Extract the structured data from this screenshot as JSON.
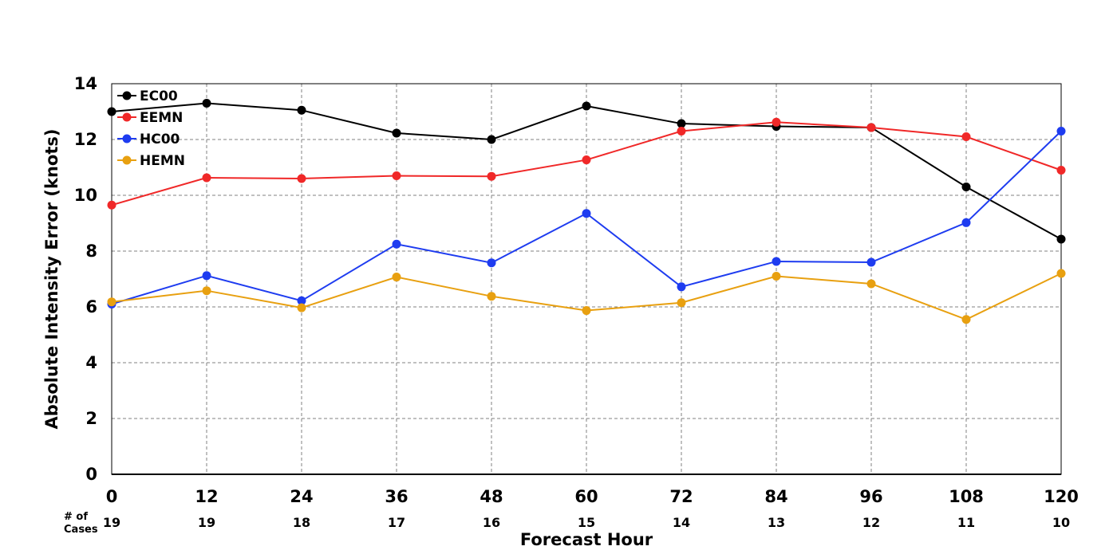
{
  "chart_data": {
    "type": "line",
    "x": [
      0,
      12,
      24,
      36,
      48,
      60,
      72,
      84,
      96,
      108,
      120
    ],
    "xtick_labels": [
      "0",
      "12",
      "24",
      "36",
      "48",
      "60",
      "72",
      "84",
      "96",
      "108",
      "120"
    ],
    "xlabel": "Forecast Hour",
    "ylabel": "Absolute Intensity Error (knots)",
    "xlim": [
      0,
      120
    ],
    "ylim": [
      0,
      14
    ],
    "yticks": [
      0,
      2,
      4,
      6,
      8,
      10,
      12,
      14
    ],
    "ytick_labels": [
      "0",
      "2",
      "4",
      "6",
      "8",
      "10",
      "12",
      "14"
    ],
    "grid": true,
    "legend_position": "top-left",
    "cases_title": [
      "# of",
      "Cases"
    ],
    "cases": [
      "19",
      "19",
      "18",
      "17",
      "16",
      "15",
      "14",
      "13",
      "12",
      "11",
      "10"
    ],
    "series": [
      {
        "name": "EC00",
        "color": "#000000",
        "values": [
          13.0,
          13.3,
          13.05,
          12.23,
          12.0,
          13.2,
          12.57,
          12.47,
          12.43,
          10.3,
          8.43
        ]
      },
      {
        "name": "EEMN",
        "color": "#f02828",
        "values": [
          9.65,
          10.63,
          10.6,
          10.7,
          10.68,
          11.27,
          12.3,
          12.62,
          12.43,
          12.1,
          10.9
        ]
      },
      {
        "name": "HC00",
        "color": "#1e3cf0",
        "values": [
          6.1,
          7.12,
          6.22,
          8.25,
          7.58,
          9.35,
          6.72,
          7.63,
          7.6,
          9.02,
          12.3
        ]
      },
      {
        "name": "HEMN",
        "color": "#e8a010",
        "values": [
          6.18,
          6.58,
          5.97,
          7.07,
          6.38,
          5.87,
          6.15,
          7.1,
          6.83,
          5.55,
          7.2
        ]
      }
    ]
  }
}
